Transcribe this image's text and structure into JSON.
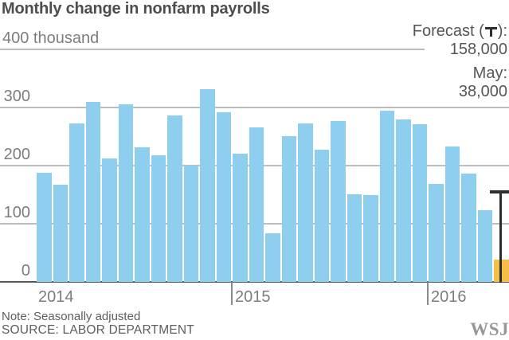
{
  "title": "Monthly change in nonfarm payrolls",
  "annotation": {
    "forecast_label_prefix": "Forecast (",
    "forecast_label_suffix": "):",
    "forecast_value": "158,000",
    "month_label": "May:",
    "month_value": "38,000"
  },
  "notes": {
    "note": "Note: Seasonally adjusted",
    "source": "SOURCE: LABOR DEPARTMENT"
  },
  "logo": "WSJ",
  "colors": {
    "bar": "#8ECFEF",
    "highlight_bar": "#F5BE45",
    "forecast_marker": "#2E2E2E",
    "gridline": "#BDBDBD",
    "axis_line": "#58585A",
    "title_text": "#4D4D4D",
    "label_text": "#7D7D7D",
    "annotation_text": "#565656"
  },
  "chart_data": {
    "type": "bar",
    "title": "Monthly change in nonfarm payrolls",
    "ylabel": "",
    "xlabel": "",
    "unit": "thousand",
    "ylim": [
      0,
      400
    ],
    "grid": true,
    "y_axis": {
      "top_label": "400 thousand",
      "ticks": [
        400,
        300,
        200,
        100,
        0
      ]
    },
    "x_years": [
      {
        "label": "2014",
        "start_index": 0
      },
      {
        "label": "2015",
        "start_index": 12
      },
      {
        "label": "2016",
        "start_index": 24
      }
    ],
    "categories": [
      "Jan 2014",
      "Feb 2014",
      "Mar 2014",
      "Apr 2014",
      "May 2014",
      "Jun 2014",
      "Jul 2014",
      "Aug 2014",
      "Sep 2014",
      "Oct 2014",
      "Nov 2014",
      "Dec 2014",
      "Jan 2015",
      "Feb 2015",
      "Mar 2015",
      "Apr 2015",
      "May 2015",
      "Jun 2015",
      "Jul 2015",
      "Aug 2015",
      "Sep 2015",
      "Oct 2015",
      "Nov 2015",
      "Dec 2015",
      "Jan 2016",
      "Feb 2016",
      "Mar 2016",
      "Apr 2016",
      "May 2016"
    ],
    "values": [
      187,
      167,
      272,
      310,
      213,
      306,
      232,
      218,
      286,
      200,
      331,
      292,
      221,
      266,
      84,
      251,
      273,
      228,
      277,
      150,
      149,
      295,
      280,
      271,
      168,
      233,
      186,
      123,
      38
    ],
    "highlight_index": 28,
    "forecast": {
      "value": 158,
      "display": "158,000",
      "month": "May 2016"
    }
  }
}
